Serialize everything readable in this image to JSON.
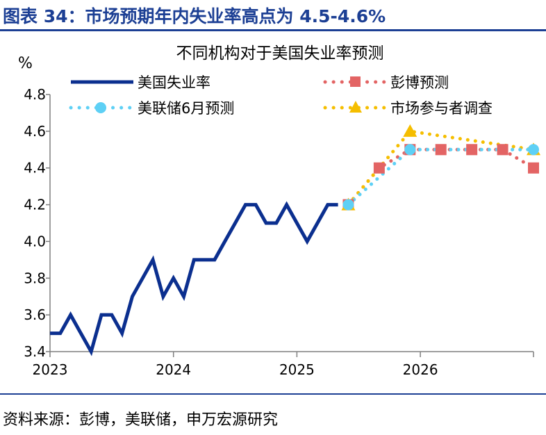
{
  "figure": {
    "title": "图表 34：市场预期年内失业率高点为 4.5-4.6%",
    "source": "资料来源：彭博，美联储，申万宏源研究",
    "colors": {
      "brand": "#1c3f94",
      "rule": "#1c3f94"
    }
  },
  "chart_data": {
    "type": "line",
    "title": "不同机构对于美国失业率预测",
    "ylabel": "%",
    "xlabel": "",
    "ylim": [
      3.4,
      4.8
    ],
    "yticks": [
      "3.4",
      "3.6",
      "3.8",
      "4.0",
      "4.2",
      "4.4",
      "4.6",
      "4.8"
    ],
    "xlim": [
      "2023-01",
      "2026-12"
    ],
    "xticks": [
      "2023",
      "2024",
      "2025",
      "2026"
    ],
    "grid": false,
    "legend_position": "top",
    "series": [
      {
        "name": "美国失业率",
        "style": "solid",
        "color": "#0b2f8f",
        "marker": "none",
        "points": [
          [
            "2023-01",
            3.5
          ],
          [
            "2023-02",
            3.5
          ],
          [
            "2023-03",
            3.6
          ],
          [
            "2023-04",
            3.5
          ],
          [
            "2023-05",
            3.4
          ],
          [
            "2023-06",
            3.6
          ],
          [
            "2023-07",
            3.6
          ],
          [
            "2023-08",
            3.5
          ],
          [
            "2023-09",
            3.7
          ],
          [
            "2023-10",
            3.8
          ],
          [
            "2023-11",
            3.9
          ],
          [
            "2023-12",
            3.7
          ],
          [
            "2024-01",
            3.8
          ],
          [
            "2024-02",
            3.7
          ],
          [
            "2024-03",
            3.9
          ],
          [
            "2024-04",
            3.9
          ],
          [
            "2024-05",
            3.9
          ],
          [
            "2024-06",
            4.0
          ],
          [
            "2024-07",
            4.1
          ],
          [
            "2024-08",
            4.2
          ],
          [
            "2024-09",
            4.2
          ],
          [
            "2024-10",
            4.1
          ],
          [
            "2024-11",
            4.1
          ],
          [
            "2024-12",
            4.2
          ],
          [
            "2025-01",
            4.1
          ],
          [
            "2025-02",
            4.0
          ],
          [
            "2025-03",
            4.1
          ],
          [
            "2025-04",
            4.2
          ],
          [
            "2025-05",
            4.2
          ]
        ]
      },
      {
        "name": "彭博预测",
        "style": "dotted",
        "color": "#e36464",
        "marker": "square",
        "points": [
          [
            "2025-06",
            4.2
          ],
          [
            "2025-09",
            4.4
          ],
          [
            "2025-12",
            4.5
          ],
          [
            "2026-03",
            4.5
          ],
          [
            "2026-06",
            4.5
          ],
          [
            "2026-09",
            4.5
          ],
          [
            "2026-12",
            4.4
          ]
        ]
      },
      {
        "name": "美联储6月预测",
        "style": "dotted",
        "color": "#5ed0f5",
        "marker": "circle",
        "points": [
          [
            "2025-06",
            4.2
          ],
          [
            "2025-12",
            4.5
          ],
          [
            "2026-12",
            4.5
          ]
        ]
      },
      {
        "name": "市场参与者调查",
        "style": "dotted",
        "color": "#f5be00",
        "marker": "triangle",
        "points": [
          [
            "2025-06",
            4.2
          ],
          [
            "2025-12",
            4.6
          ],
          [
            "2026-12",
            4.5
          ]
        ]
      }
    ]
  }
}
